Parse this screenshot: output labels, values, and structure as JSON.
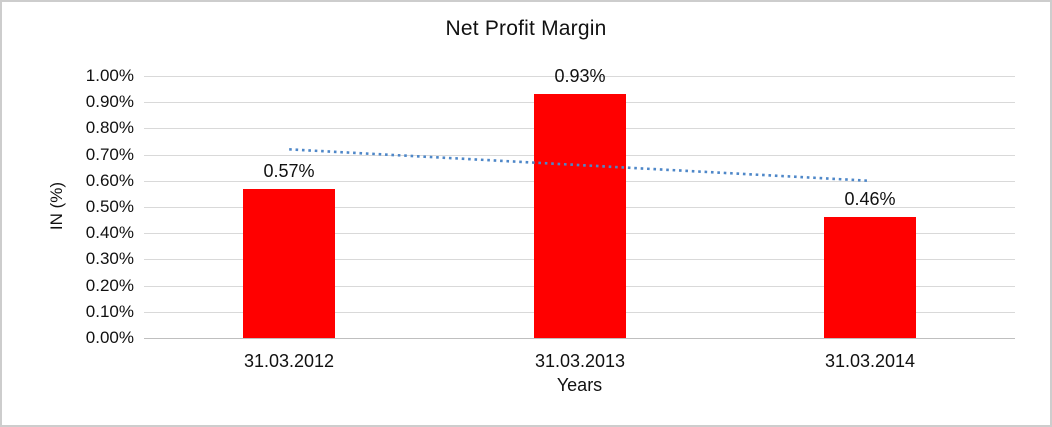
{
  "chart_data": {
    "type": "bar",
    "title": "Net Profit Margin",
    "categories": [
      "31.03.2012",
      "31.03.2013",
      "31.03.2014"
    ],
    "values": [
      0.57,
      0.93,
      0.46
    ],
    "data_labels": [
      "0.57%",
      "0.93%",
      "0.46%"
    ],
    "series_name": "Net Profit Margin",
    "xlabel": "Years",
    "ylabel": "IN (%)",
    "ylim": [
      0.0,
      1.0
    ],
    "ytick_step": 0.1,
    "ytick_labels": [
      "0.00%",
      "0.10%",
      "0.20%",
      "0.30%",
      "0.40%",
      "0.50%",
      "0.60%",
      "0.70%",
      "0.80%",
      "0.90%",
      "1.00%"
    ],
    "grid": "horizontal",
    "legend": "none",
    "bar_color": "#ff0000",
    "text_color": "#111111",
    "gridline_color": "#d9d9d9",
    "axis_line_color": "#bfbfbf",
    "trendline": {
      "type": "linear",
      "style": "dotted",
      "color": "#4e87c8",
      "start_value": 0.72,
      "end_value": 0.6
    }
  }
}
